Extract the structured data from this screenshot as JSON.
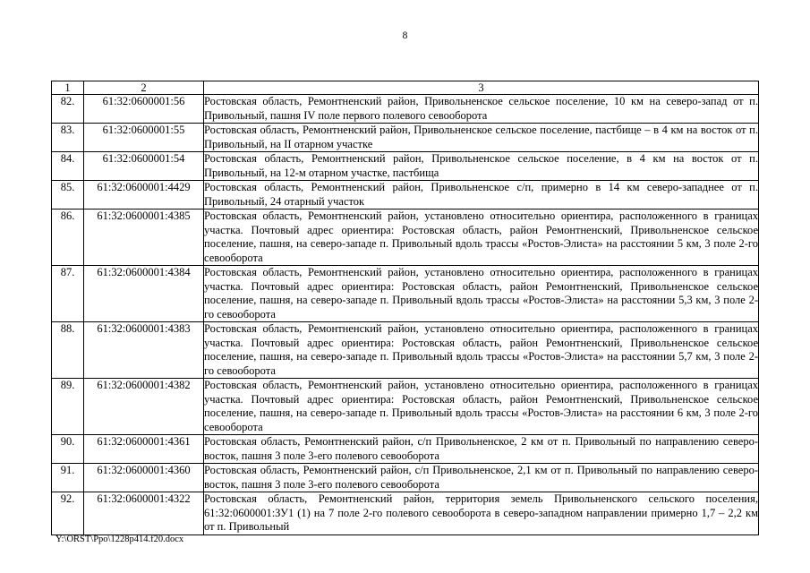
{
  "page": {
    "number": "8",
    "footer": "Y:\\ORST\\Ppo\\1228p414.f20.docx"
  },
  "table": {
    "headers": [
      "1",
      "2",
      "3"
    ],
    "rows": [
      {
        "num": "82.",
        "cadastral": "61:32:0600001:56",
        "description": "Ростовская область, Ремонтненский район, Привольненское сельское поселение, 10 км на северо-запад от п. Привольный, пашня IV поле первого полевого севооборота"
      },
      {
        "num": "83.",
        "cadastral": "61:32:0600001:55",
        "description": "Ростовская область, Ремонтненский район, Привольненское сельское поселение, пастбище – в 4 км на восток от п. Привольный, на II отарном участке"
      },
      {
        "num": "84.",
        "cadastral": "61:32:0600001:54",
        "description": "Ростовская область, Ремонтненский район, Привольненское сельское поселение, в 4 км на восток от п. Привольный, на 12-м отарном участке, пастбища"
      },
      {
        "num": "85.",
        "cadastral": "61:32:0600001:4429",
        "description": "Ростовская область, Ремонтненский район, Привольненское с/п, примерно в 14 км северо-западнее от п. Привольный, 24 отарный участок"
      },
      {
        "num": "86.",
        "cadastral": "61:32:0600001:4385",
        "description": "Ростовская область, Ремонтненский район, установлено относительно ориентира, расположенного в границах участка. Почтовый адрес ориентира: Ростовская область, район Ремонтненский, Привольненское сельское поселение, пашня, на северо-западе п. Привольный вдоль трассы «Ростов-Элиста» на расстоянии 5 км, 3 поле 2-го севооборота"
      },
      {
        "num": "87.",
        "cadastral": "61:32:0600001:4384",
        "description": "Ростовская область, Ремонтненский район, установлено относительно ориентира, расположенного в границах участка. Почтовый адрес ориентира: Ростовская область, район Ремонтненский, Привольненское сельское поселение, пашня, на северо-западе п. Привольный вдоль трассы «Ростов-Элиста» на расстоянии 5,3 км, 3 поле 2-го севооборота"
      },
      {
        "num": "88.",
        "cadastral": "61:32:0600001:4383",
        "description": "Ростовская область, Ремонтненский район, установлено относительно ориентира, расположенного в границах участка. Почтовый адрес ориентира: Ростовская область, район Ремонтненский, Привольненское сельское поселение, пашня, на северо-западе п. Привольный вдоль трассы «Ростов-Элиста» на расстоянии 5,7 км, 3 поле 2-го севооборота"
      },
      {
        "num": "89.",
        "cadastral": "61:32:0600001:4382",
        "description": "Ростовская область, Ремонтненский район, установлено относительно ориентира, расположенного в границах участка. Почтовый адрес ориентира: Ростовская область, район Ремонтненский, Привольненское сельское поселение, пашня, на северо-западе п. Привольный вдоль трассы «Ростов-Элиста» на расстоянии 6 км, 3 поле 2-го севооборота"
      },
      {
        "num": "90.",
        "cadastral": "61:32:0600001:4361",
        "description": "Ростовская область, Ремонтненский район, с/п Привольненское, 2 км от п. Привольный по направлению северо-восток, пашня 3 поле 3-его полевого севооборота"
      },
      {
        "num": "91.",
        "cadastral": "61:32:0600001:4360",
        "description": "Ростовская область, Ремонтненский район, с/п Привольненское, 2,1 км от п. Привольный по направлению северо-восток, пашня 3 поле 3-его полевого севооборота"
      },
      {
        "num": "92.",
        "cadastral": "61:32:0600001:4322",
        "description": "Ростовская область, Ремонтненский район, территория земель Привольненского сельского поселения, 61:32:0600001:ЗУ1 (1) на 7 поле 2-го полевого севооборота в северо-западном направлении примерно 1,7 – 2,2 км от п. Привольный"
      }
    ]
  }
}
